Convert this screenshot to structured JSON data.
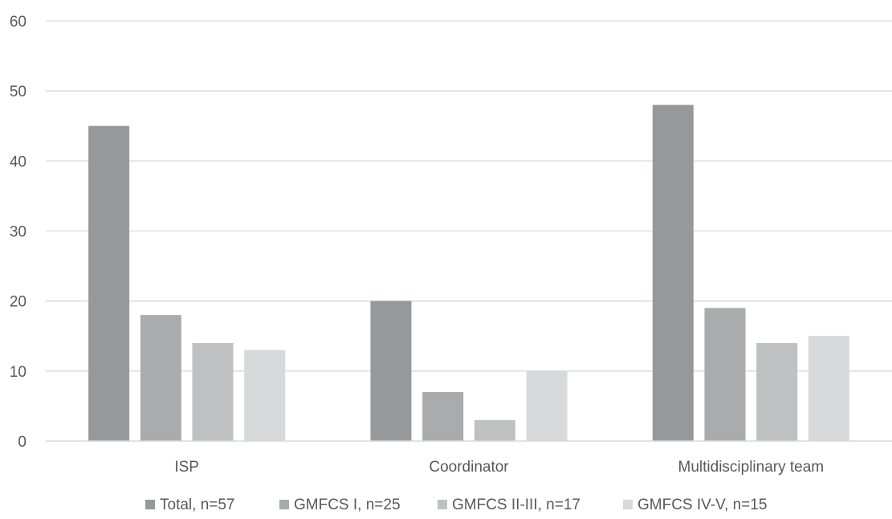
{
  "chart_data": {
    "type": "bar",
    "categories": [
      "ISP",
      "Coordinator",
      "Multidisciplinary team"
    ],
    "series": [
      {
        "name": "Total, n=57",
        "values": [
          45,
          20,
          48
        ],
        "color": "#96999b"
      },
      {
        "name": "GMFCS I, n=25",
        "values": [
          18,
          7,
          19
        ],
        "color": "#a9abad"
      },
      {
        "name": "GMFCS II-III, n=17",
        "values": [
          14,
          3,
          14
        ],
        "color": "#bfc0c1"
      },
      {
        "name": "GMFCS IV-V, n=15",
        "values": [
          13,
          10,
          15
        ],
        "color": "#d8d9da"
      }
    ],
    "yticks": [
      0,
      10,
      20,
      30,
      40,
      50,
      60
    ],
    "ylim": [
      0,
      60
    ],
    "grid": true,
    "legend_position": "bottom",
    "title": "",
    "xlabel": "",
    "ylabel": "",
    "colors": {
      "grid": "#d9d9d9",
      "axis": "#d9d9d9",
      "text": "#595959"
    }
  }
}
